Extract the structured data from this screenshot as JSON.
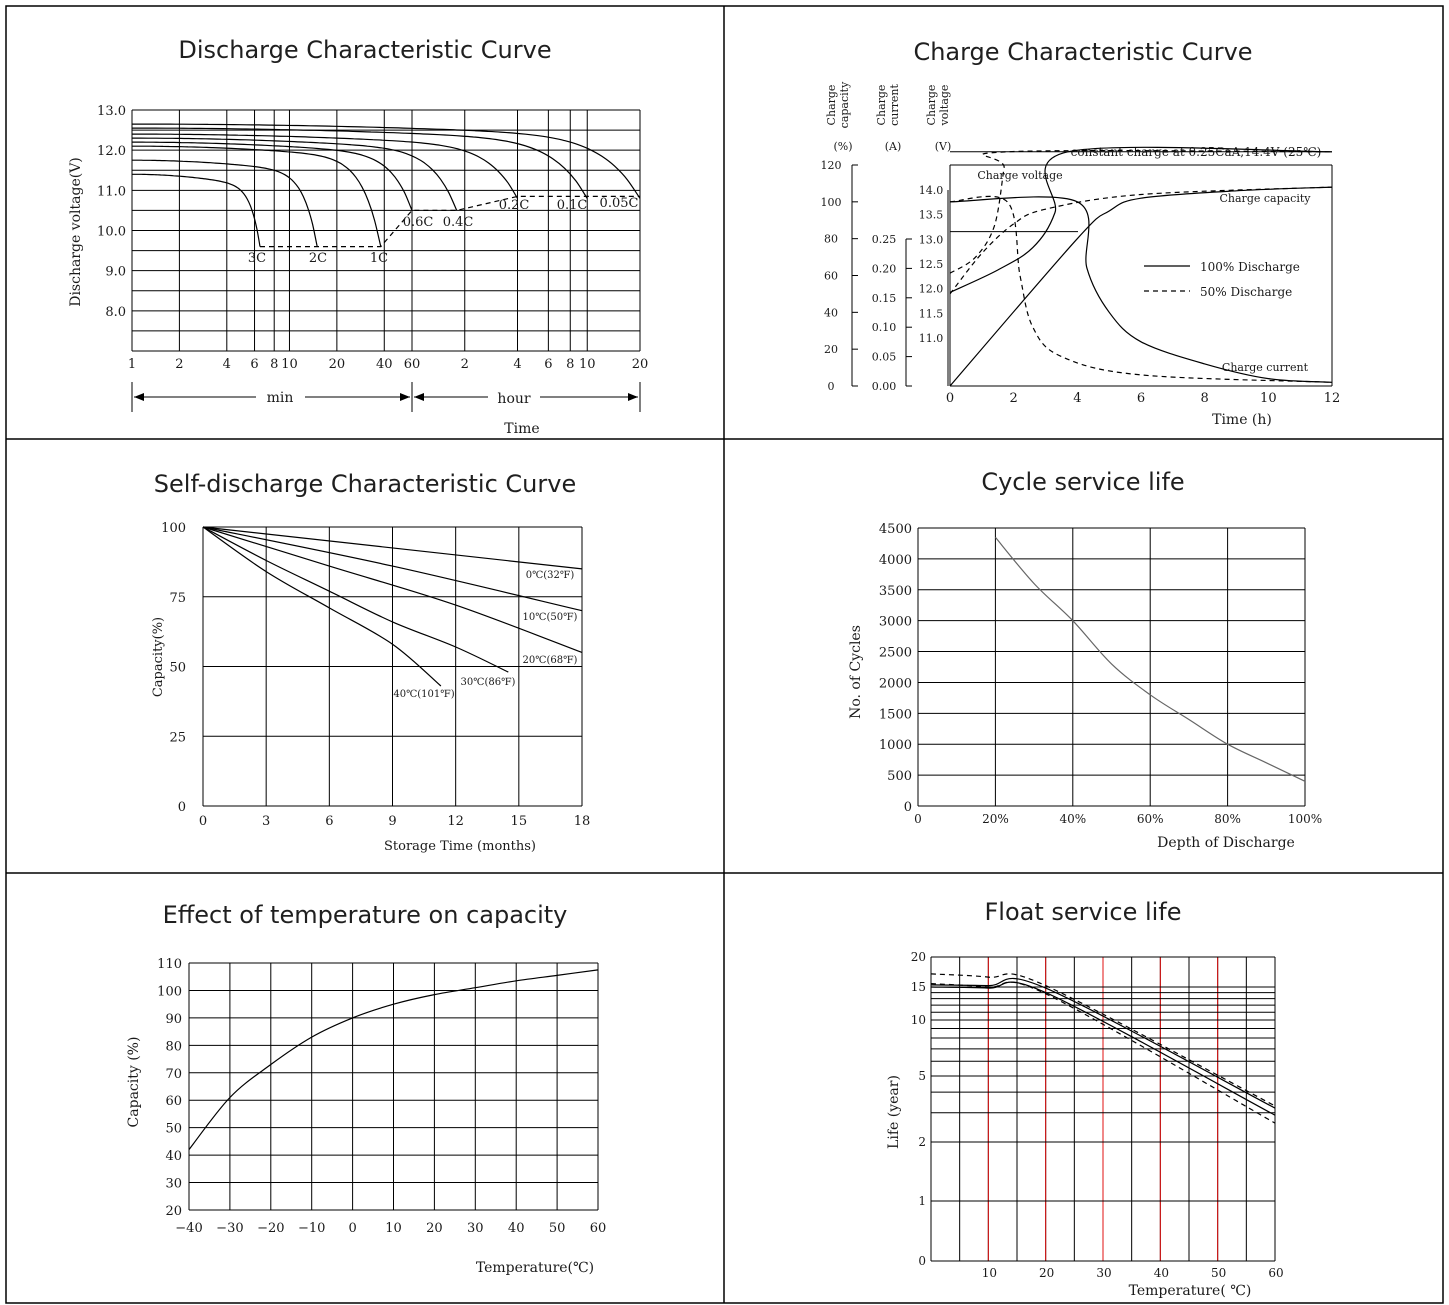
{
  "chart_data": [
    {
      "type": "line",
      "title": "Discharge Characteristic Curve",
      "ylabel": "Discharge voltage(V)",
      "xlabel": "Time",
      "x_scale": "log",
      "ylim": [
        7.0,
        13.0
      ],
      "yticks": [
        "13.0",
        "12.0",
        "11.0",
        "10.0",
        "9.0",
        "8.0"
      ],
      "xticks_min": [
        "1",
        "2",
        "4",
        "6",
        "8",
        "10",
        "20",
        "40",
        "60"
      ],
      "xticks_hour": [
        "2",
        "4",
        "6",
        "8",
        "10",
        "20"
      ],
      "range_labels": [
        "min",
        "hour"
      ],
      "series": [
        {
          "name": "3C",
          "end_time_min": 6.5,
          "start_v": 11.4,
          "end_v": 9.6
        },
        {
          "name": "2C",
          "end_time_min": 15,
          "start_v": 11.75,
          "end_v": 9.6
        },
        {
          "name": "1C",
          "end_time_min": 38,
          "start_v": 12.1,
          "end_v": 9.6
        },
        {
          "name": "0.6C",
          "end_time_min": 60,
          "start_v": 12.2,
          "end_v": 10.5
        },
        {
          "name": "0.4C",
          "end_time_min": 108,
          "start_v": 12.3,
          "end_v": 10.5
        },
        {
          "name": "0.2C",
          "end_time_min": 240,
          "start_v": 12.4,
          "end_v": 10.8
        },
        {
          "name": "0.1C",
          "end_time_min": 600,
          "start_v": 12.55,
          "end_v": 10.8
        },
        {
          "name": "0.05C",
          "end_time_min": 1200,
          "start_v": 12.65,
          "end_v": 10.8
        }
      ],
      "cutoff_voltages": [
        9.6,
        9.6,
        9.6,
        10.5,
        10.5,
        10.8,
        10.8,
        10.8
      ]
    },
    {
      "type": "line",
      "title": "Charge Characteristic Curve",
      "xlabel": "Time (h)",
      "axis_headers": [
        [
          "Charge",
          "capacity",
          "(%)"
        ],
        [
          "Charge",
          "current",
          "(A)"
        ],
        [
          "Charge",
          "voltage",
          "(V)"
        ]
      ],
      "xticks": [
        "0",
        "2",
        "4",
        "6",
        "8",
        "10",
        "12"
      ],
      "capacity_ticks": [
        "120",
        "100",
        "80",
        "60",
        "40",
        "20",
        "0"
      ],
      "current_ticks": [
        "0.25",
        "0.20",
        "0.15",
        "0.10",
        "0.05",
        "0.00"
      ],
      "voltage_ticks": [
        "14.0",
        "13.5",
        "13.0",
        "12.5",
        "12.0",
        "11.5",
        "11.0"
      ],
      "annotation": "constant charge at 0.25CaA,14.4V (25℃)",
      "curve_labels": [
        "Charge voltage",
        "Charge capacity",
        "Charge current"
      ],
      "legend": [
        "100% Discharge",
        "50% Discharge"
      ],
      "series": [
        {
          "name": "100% Discharge",
          "voltage": [
            [
              0,
              12.05
            ],
            [
              1.5,
              12.4
            ],
            [
              2.6,
              12.75
            ],
            [
              3.3,
              13.3
            ],
            [
              3.7,
              14.25
            ],
            [
              12,
              14.25
            ]
          ],
          "capacity": [
            [
              0,
              0
            ],
            [
              4,
              80
            ],
            [
              5,
              95
            ],
            [
              6,
              102
            ],
            [
              9,
              106
            ],
            [
              12,
              108
            ]
          ],
          "current": [
            [
              0,
              0.25
            ],
            [
              4,
              0.25
            ],
            [
              4.3,
              0.16
            ],
            [
              5,
              0.1
            ],
            [
              6,
              0.06
            ],
            [
              8,
              0.03
            ],
            [
              10,
              0.01
            ],
            [
              12,
              0.005
            ]
          ]
        },
        {
          "name": "50% Discharge",
          "voltage": [
            [
              0,
              12.35
            ],
            [
              0.8,
              12.6
            ],
            [
              1.4,
              13.1
            ],
            [
              1.7,
              14.0
            ],
            [
              1.8,
              14.25
            ],
            [
              12,
              14.25
            ]
          ],
          "capacity": [
            [
              0,
              50
            ],
            [
              1,
              72
            ],
            [
              2,
              88
            ],
            [
              3,
              96
            ],
            [
              6,
              104
            ],
            [
              12,
              108
            ]
          ],
          "current": [
            [
              0,
              0.25
            ],
            [
              1.8,
              0.25
            ],
            [
              2.2,
              0.15
            ],
            [
              2.6,
              0.08
            ],
            [
              3.5,
              0.04
            ],
            [
              6,
              0.015
            ],
            [
              12,
              0.005
            ]
          ]
        }
      ]
    },
    {
      "type": "line",
      "title": "Self-discharge Characteristic Curve",
      "xlabel": "Storage Time (months)",
      "ylabel": "Capacity(%)",
      "xlim": [
        0,
        18
      ],
      "ylim": [
        0,
        100
      ],
      "xticks": [
        "0",
        "3",
        "6",
        "9",
        "12",
        "15",
        "18"
      ],
      "yticks": [
        "100",
        "75",
        "50",
        "25",
        "0"
      ],
      "series": [
        {
          "name": "0℃(32℉)",
          "points": [
            [
              0,
              100
            ],
            [
              18,
              85
            ]
          ]
        },
        {
          "name": "10℃(50℉)",
          "points": [
            [
              0,
              100
            ],
            [
              9,
              86
            ],
            [
              18,
              70
            ]
          ]
        },
        {
          "name": "20℃(68℉)",
          "points": [
            [
              0,
              100
            ],
            [
              6,
              86
            ],
            [
              12,
              72
            ],
            [
              18,
              55
            ]
          ]
        },
        {
          "name": "30℃(86℉)",
          "points": [
            [
              0,
              100
            ],
            [
              3,
              88
            ],
            [
              6,
              77
            ],
            [
              9,
              66
            ],
            [
              12,
              57
            ],
            [
              14.5,
              48
            ]
          ]
        },
        {
          "name": "40℃(101℉)",
          "points": [
            [
              0,
              100
            ],
            [
              3,
              84
            ],
            [
              6,
              71
            ],
            [
              9,
              58
            ],
            [
              11.3,
              43
            ]
          ]
        }
      ]
    },
    {
      "type": "line",
      "title": "Cycle service life",
      "xlabel": "Depth of Discharge",
      "ylabel": "No. of Cycles",
      "xlim": [
        0,
        100
      ],
      "ylim": [
        0,
        4500
      ],
      "xticks": [
        "0",
        "20%",
        "40%",
        "60%",
        "80%",
        "100%"
      ],
      "yticks": [
        "4500",
        "4000",
        "3500",
        "3000",
        "2500",
        "2000",
        "1500",
        "1000",
        "500",
        "0"
      ],
      "series": [
        {
          "name": "",
          "points": [
            [
              20,
              4350
            ],
            [
              30,
              3600
            ],
            [
              40,
              3000
            ],
            [
              50,
              2300
            ],
            [
              60,
              1800
            ],
            [
              70,
              1400
            ],
            [
              80,
              1000
            ],
            [
              90,
              700
            ],
            [
              100,
              400
            ]
          ]
        }
      ]
    },
    {
      "type": "line",
      "title": "Effect of temperature on capacity",
      "xlabel": "Temperature(℃)",
      "ylabel": "Capacity (%)",
      "xlim": [
        -40,
        60
      ],
      "ylim": [
        20,
        110
      ],
      "xticks": [
        "−40",
        "−30",
        "−20",
        "−10",
        "0",
        "10",
        "20",
        "30",
        "40",
        "50",
        "60"
      ],
      "yticks": [
        "110",
        "100",
        "90",
        "80",
        "70",
        "60",
        "50",
        "40",
        "30",
        "20"
      ],
      "series": [
        {
          "name": "",
          "points": [
            [
              -40,
              42
            ],
            [
              -30,
              61
            ],
            [
              -20,
              73
            ],
            [
              -10,
              83
            ],
            [
              0,
              90
            ],
            [
              10,
              95
            ],
            [
              20,
              98.5
            ],
            [
              30,
              101
            ],
            [
              40,
              103.5
            ],
            [
              50,
              105.5
            ],
            [
              60,
              107.5
            ]
          ]
        }
      ]
    },
    {
      "type": "line",
      "title": "Float  service life",
      "xlabel": "Temperature(  ℃)",
      "ylabel": "Life (year)",
      "xlim": [
        0,
        60
      ],
      "xticks": [
        "10",
        "20",
        "30",
        "40",
        "50",
        "60"
      ],
      "yticks": [
        "20",
        "15",
        "10",
        "5",
        "2",
        "1",
        "0"
      ],
      "series": [
        {
          "name": "",
          "style": "dashed",
          "points": [
            [
              0,
              17
            ],
            [
              10,
              16.5
            ],
            [
              20,
              15.2
            ],
            [
              60,
              3.3
            ]
          ]
        },
        {
          "name": "",
          "style": "dashed",
          "points": [
            [
              0,
              15.5
            ],
            [
              10,
              15
            ],
            [
              20,
              13.8
            ],
            [
              60,
              2.6
            ]
          ]
        },
        {
          "name": "",
          "style": "solid",
          "points": [
            [
              0,
              15.3
            ],
            [
              10,
              15.2
            ],
            [
              20,
              14.8
            ],
            [
              60,
              3.2
            ]
          ]
        },
        {
          "name": "",
          "style": "solid",
          "points": [
            [
              0,
              15
            ],
            [
              10,
              14.8
            ],
            [
              20,
              14
            ],
            [
              60,
              2.9
            ]
          ]
        }
      ]
    }
  ]
}
